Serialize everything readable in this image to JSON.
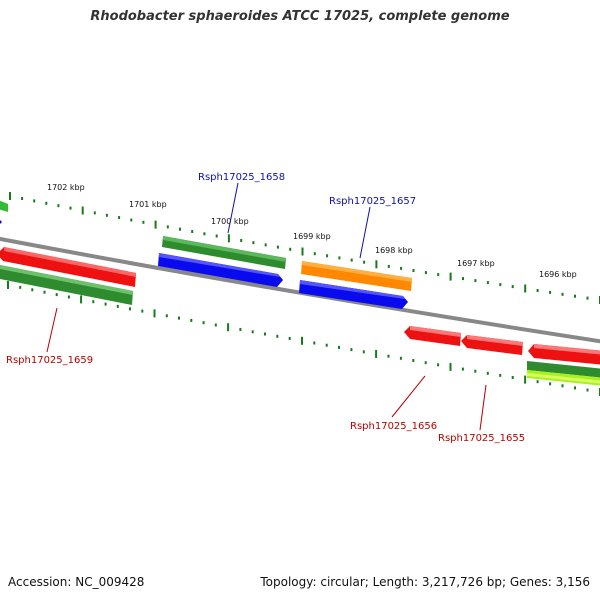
{
  "header": {
    "title": "Rhodobacter sphaeroides ATCC 17025, complete genome"
  },
  "footer": {
    "accession": "Accession: NC_009428",
    "topology": "Topology: circular; Length: 3,217,726 bp; Genes: 3,156"
  },
  "ticks": {
    "labels": [
      "1702 kbp",
      "1701 kbp",
      "1700 kbp",
      "1699 kbp",
      "1698 kbp",
      "1697 kbp",
      "1696 kbp"
    ]
  },
  "gene_labels": {
    "rsph_1658": "Rsph17025_1658",
    "rsph_1657": "Rsph17025_1657",
    "rsph_1659": "Rsph17025_1659",
    "rsph_1656": "Rsph17025_1656",
    "rsph_1655": "Rsph17025_1655"
  },
  "colors": {
    "backbone": "#888888",
    "tick": "#1a7a1a",
    "green_gene": "#2e8b2e",
    "blue_gene": "#0a0aee",
    "red_gene": "#ee1111",
    "orange_gene": "#ff8800",
    "lime_gene": "#88ee22",
    "label_blue": "#1010aa",
    "label_red": "#bb0000"
  }
}
